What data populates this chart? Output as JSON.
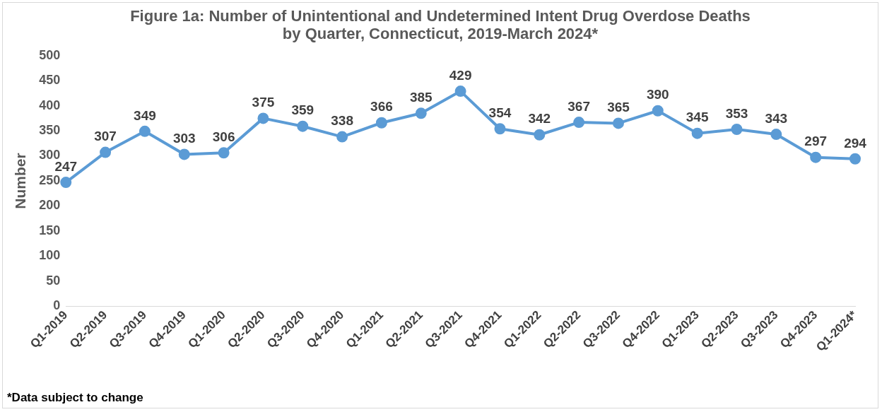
{
  "chart_data": {
    "type": "line",
    "title": "Figure 1a: Number of Unintentional and Undetermined Intent Drug Overdose Deaths by Quarter, Connecticut, 2019-March 2024*",
    "ylabel": "Number",
    "categories": [
      "Q1-2019",
      "Q2-2019",
      "Q3-2019",
      "Q4-2019",
      "Q1-2020",
      "Q2-2020",
      "Q3-2020",
      "Q4-2020",
      "Q1-2021",
      "Q2-2021",
      "Q3-2021",
      "Q4-2021",
      "Q1-2022",
      "Q2-2022",
      "Q3-2022",
      "Q4-2022",
      "Q1-2023",
      "Q2-2023",
      "Q3-2023",
      "Q4-2023",
      "Q1-2024*"
    ],
    "series": [
      {
        "color": "#5b9bd5",
        "values": [
          247,
          307,
          349,
          303,
          306,
          375,
          359,
          338,
          366,
          385,
          429,
          354,
          342,
          367,
          365,
          390,
          345,
          353,
          343,
          297,
          294
        ]
      }
    ],
    "ylim": [
      0,
      500
    ],
    "yticks": [
      0,
      50,
      100,
      150,
      200,
      250,
      300,
      350,
      400,
      450,
      500
    ],
    "grid": false,
    "legend": false,
    "marker": "circle",
    "line_style": "solid",
    "data_labels": true,
    "annotations": [
      "*Data subject to change"
    ]
  }
}
